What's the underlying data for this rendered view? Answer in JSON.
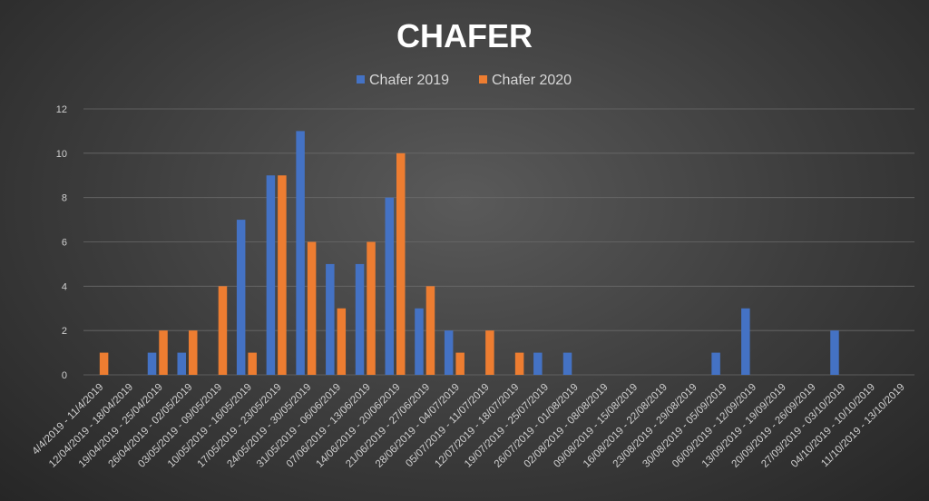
{
  "chart_data": {
    "type": "bar",
    "title": "CHAFER",
    "xlabel": "",
    "ylabel": "",
    "ylim": [
      0,
      12
    ],
    "yticks": [
      0,
      2,
      4,
      6,
      8,
      10,
      12
    ],
    "grid": true,
    "legend_position": "top",
    "categories": [
      "4/4/2019 - 11/4/2019",
      "12/04/2019 - 18/04/2019",
      "19/04/2019 - 25/04/2019",
      "26/04/2019 - 02/05/2019",
      "03/05/2019 - 09/05/2019",
      "10/05/2019 - 16/05/2019",
      "17/05/2019 - 23/05/2019",
      "24/05/2019 - 30/05/2019",
      "31/05/2019 - 06/06/2019",
      "07/06/2019 - 13/06/2019",
      "14/06/2019 - 20/06/2019",
      "21/06/2019 - 27/06/2019",
      "28/06/2019 - 04/07/2019",
      "05/07/2019 - 11/07/2019",
      "12/07/2019 - 18/07/2019",
      "19/07/2019 - 25/07/2019",
      "26/07/2019 - 01/08/2019",
      "02/08/2019 - 08/08/2019",
      "09/08/2019 - 15/08/2019",
      "16/08/2019 - 22/08/2019",
      "23/08/2019 - 29/08/2019",
      "30/08/2019 - 05/09/2019",
      "06/09/2019 - 12/09/2019",
      "13/09/2019 - 19/09/2019",
      "20/09/2019 - 26/09/2019",
      "27/09/2019 - 03/10/2019",
      "04/10/2019 - 10/10/2019",
      "11/10/2019 - 13/10/2019"
    ],
    "series": [
      {
        "name": "Chafer 2019",
        "color": "#4472C4",
        "values": [
          0,
          0,
          1,
          1,
          0,
          7,
          9,
          11,
          5,
          5,
          8,
          3,
          2,
          0,
          0,
          1,
          1,
          0,
          0,
          0,
          0,
          1,
          3,
          0,
          0,
          2,
          0,
          0
        ]
      },
      {
        "name": "Chafer 2020",
        "color": "#ED7D31",
        "values": [
          1,
          0,
          2,
          2,
          4,
          1,
          9,
          6,
          3,
          6,
          10,
          4,
          1,
          2,
          1,
          0,
          0,
          0,
          0,
          0,
          0,
          0,
          0,
          0,
          0,
          0,
          0,
          0
        ]
      }
    ]
  }
}
